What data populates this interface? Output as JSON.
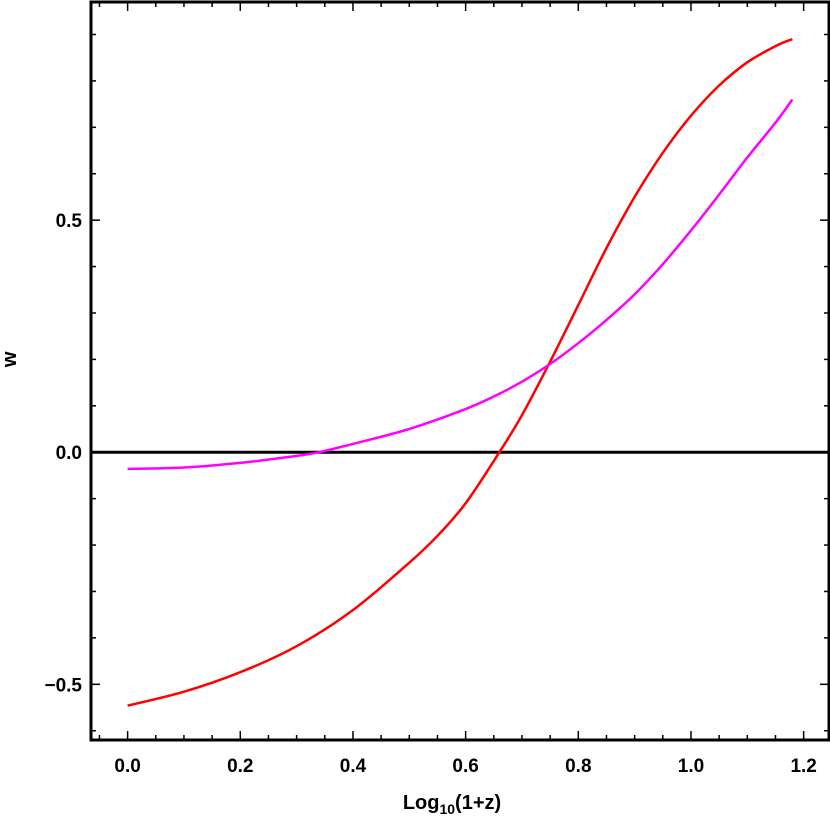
{
  "chart_data": {
    "type": "line",
    "xlabel": {
      "prefix": "Log",
      "sub": "10",
      "suffix": "(1+z)"
    },
    "ylabel": "w",
    "xlim": [
      -0.065,
      1.245
    ],
    "ylim": [
      -0.62,
      0.97
    ],
    "x_ticks": [
      0.0,
      0.2,
      0.4,
      0.6,
      0.8,
      1.0,
      1.2
    ],
    "x_tick_labels": [
      "0.0",
      "0.2",
      "0.4",
      "0.6",
      "0.8",
      "1.0",
      "1.2"
    ],
    "y_ticks": [
      -0.5,
      0.0,
      0.5
    ],
    "y_tick_labels": [
      "−0.5",
      "0.0",
      "0.5"
    ],
    "reference_line": {
      "y": 0.0,
      "color": "#000000"
    },
    "grid": false,
    "series": [
      {
        "color": "#ff0000",
        "x": [
          0.0,
          0.1,
          0.2,
          0.3,
          0.4,
          0.5,
          0.55,
          0.6,
          0.66,
          0.7,
          0.75,
          0.8,
          0.85,
          0.9,
          0.95,
          1.0,
          1.05,
          1.1,
          1.15,
          1.18
        ],
        "y": [
          -0.546,
          -0.516,
          -0.474,
          -0.418,
          -0.34,
          -0.238,
          -0.18,
          -0.11,
          0.0,
          0.08,
          0.195,
          0.317,
          0.44,
          0.55,
          0.645,
          0.725,
          0.79,
          0.84,
          0.875,
          0.89
        ]
      },
      {
        "color": "#ff00ff",
        "x": [
          0.0,
          0.1,
          0.2,
          0.3,
          0.34,
          0.4,
          0.5,
          0.6,
          0.65,
          0.7,
          0.75,
          0.8,
          0.85,
          0.9,
          0.95,
          1.0,
          1.05,
          1.1,
          1.15,
          1.18
        ],
        "y": [
          -0.036,
          -0.033,
          -0.023,
          -0.008,
          0.0,
          0.018,
          0.05,
          0.093,
          0.12,
          0.152,
          0.19,
          0.235,
          0.285,
          0.34,
          0.405,
          0.478,
          0.555,
          0.635,
          0.71,
          0.76
        ]
      }
    ]
  }
}
